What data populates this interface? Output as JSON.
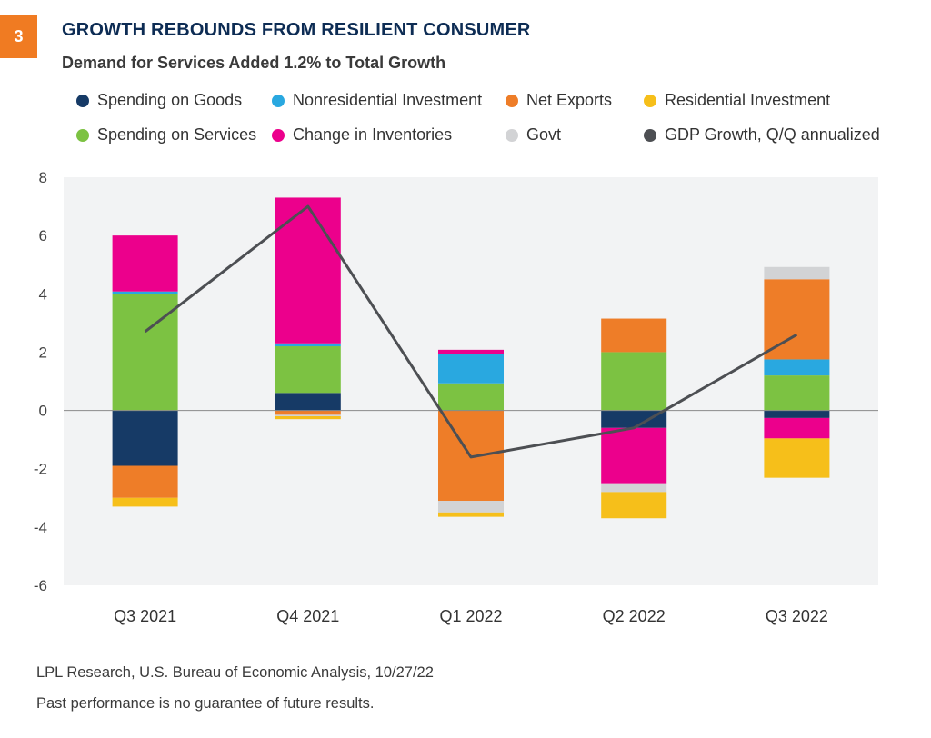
{
  "badge": {
    "label": "3",
    "color": "#f07b22"
  },
  "header": {
    "title": "GROWTH REBOUNDS FROM RESILIENT CONSUMER",
    "subtitle": "Demand for Services Added 1.2% to Total Growth"
  },
  "footer": {
    "source": "LPL Research, U.S. Bureau of Economic Analysis,  10/27/22",
    "disclaimer": "Past performance is no guarantee of future results."
  },
  "chart_data": {
    "type": "bar",
    "stacked": true,
    "title": "GROWTH REBOUNDS FROM RESILIENT CONSUMER",
    "subtitle": "Demand for Services Added 1.2% to Total Growth",
    "categories": [
      "Q3 2021",
      "Q4 2021",
      "Q1 2022",
      "Q2 2022",
      "Q3 2022"
    ],
    "ylim": [
      -6,
      8
    ],
    "yticks": [
      8,
      6,
      4,
      2,
      0,
      -2,
      -4,
      -6
    ],
    "grid": false,
    "legend_position": "top",
    "series": [
      {
        "name": "Spending on Goods",
        "color": "#163a66",
        "values": [
          -1.9,
          0.6,
          0.0,
          -0.6,
          -0.26
        ]
      },
      {
        "name": "Spending on Services",
        "color": "#7cc242",
        "values": [
          3.98,
          1.6,
          0.93,
          2.0,
          1.2
        ]
      },
      {
        "name": "Nonresidential Investment",
        "color": "#29a8e0",
        "values": [
          0.1,
          0.1,
          1.0,
          0.0,
          0.55
        ]
      },
      {
        "name": "Change in Inventories",
        "color": "#ec008c",
        "values": [
          1.92,
          5.0,
          0.15,
          -1.9,
          -0.7
        ]
      },
      {
        "name": "Net Exports",
        "color": "#ee7d28",
        "values": [
          -1.1,
          -0.15,
          -3.1,
          1.15,
          2.75
        ]
      },
      {
        "name": "Govt",
        "color": "#d2d3d5",
        "values": [
          0.0,
          -0.05,
          -0.4,
          -0.3,
          0.42
        ]
      },
      {
        "name": "Residential Investment",
        "color": "#f6bf1a",
        "values": [
          -0.3,
          -0.1,
          -0.15,
          -0.9,
          -1.35
        ]
      }
    ],
    "line": {
      "name": "GDP Growth, Q/Q annualized",
      "color": "#4d4f53",
      "values": [
        2.7,
        7.0,
        -1.6,
        -0.6,
        2.6
      ]
    },
    "legend_order": [
      "Spending on Goods",
      "Nonresidential Investment",
      "Net Exports",
      "Residential Investment",
      "Spending on Services",
      "Change in Inventories",
      "Govt",
      "GDP Growth, Q/Q annualized"
    ]
  }
}
